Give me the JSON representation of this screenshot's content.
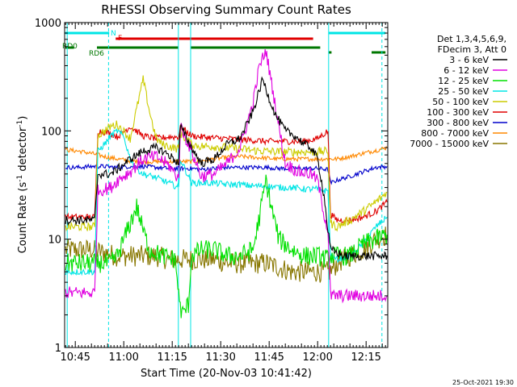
{
  "chart_data": {
    "type": "line",
    "title": "RHESSI Observing Summary Count Rates",
    "xlabel": "Start Time (20-Nov-03 10:41:42)",
    "ylabel": "Count Rate (s⁻¹ detector⁻¹)",
    "ylabel_parts": [
      "Count Rate (s",
      "-1",
      " detector",
      "-1",
      ")"
    ],
    "y_scale": "log",
    "ylim": [
      1,
      1000
    ],
    "xlim_minutes": [
      41.7,
      141.7
    ],
    "y_ticks": [
      {
        "value": 1,
        "label": "1"
      },
      {
        "value": 10,
        "label": "10"
      },
      {
        "value": 100,
        "label": "100"
      },
      {
        "value": 1000,
        "label": "1000"
      }
    ],
    "x_ticks": [
      {
        "minutes": 45,
        "label": "10:45"
      },
      {
        "minutes": 60,
        "label": "11:00"
      },
      {
        "minutes": 75,
        "label": "11:15"
      },
      {
        "minutes": 90,
        "label": "11:30"
      },
      {
        "minutes": 105,
        "label": "11:45"
      },
      {
        "minutes": 120,
        "label": "12:00"
      },
      {
        "minutes": 135,
        "label": "12:15"
      }
    ],
    "legend_header": [
      "Det 1,3,4,5,6,9,",
      "FDecim 3, Att 0"
    ],
    "legend_position": "right",
    "timestamp": "25-Oct-2021 19:30",
    "flags": [
      {
        "label": "N",
        "color": "#00e5e5",
        "ranges": [
          [
            41.9,
            55.5
          ],
          [
            123.4,
            141.0
          ]
        ]
      },
      {
        "label": "F",
        "color": "#e00000",
        "ranges": [
          [
            57.5,
            118.6
          ]
        ]
      },
      {
        "label": "RD0",
        "color": "#007700",
        "ranges": [
          [
            41.9,
            44.6
          ],
          [
            51.7,
            76.9
          ],
          [
            80.8,
            120.8
          ]
        ]
      },
      {
        "label": "RD6",
        "color": "#007700",
        "ranges": [
          [
            123.4,
            124.3
          ],
          [
            136.7,
            141.0
          ]
        ]
      }
    ],
    "vlines": [
      {
        "minutes": 42.5,
        "color": "#00e5e5",
        "style": "solid"
      },
      {
        "minutes": 55.3,
        "color": "#00e5e5",
        "style": "dashed"
      },
      {
        "minutes": 76.9,
        "color": "#00e5e5",
        "style": "solid"
      },
      {
        "minutes": 80.7,
        "color": "#00e5e5",
        "style": "solid"
      },
      {
        "minutes": 123.4,
        "color": "#00e5e5",
        "style": "solid"
      },
      {
        "minutes": 139.9,
        "color": "#00e5e5",
        "style": "dashed"
      }
    ],
    "series": [
      {
        "name": "3 - 6 keV",
        "color": "#000000",
        "x": [
          42,
          46,
          50,
          51,
          52,
          56,
          58,
          62,
          66,
          70,
          74,
          77,
          77.5,
          81,
          84,
          88,
          92,
          96,
          100,
          103,
          105,
          107,
          110,
          113,
          116,
          118,
          120,
          122,
          123.2,
          124,
          128,
          132,
          136,
          140,
          141.5
        ],
        "y": [
          15,
          15,
          15,
          15,
          40,
          40,
          44,
          55,
          65,
          70,
          60,
          50,
          110,
          70,
          50,
          55,
          75,
          85,
          150,
          300,
          200,
          140,
          100,
          90,
          75,
          70,
          55,
          25,
          12,
          8,
          7,
          7,
          7,
          7,
          7
        ]
      },
      {
        "name": "6 - 12 keV",
        "color": "#e000e0",
        "x": [
          42,
          50,
          51,
          52,
          56,
          58,
          62,
          66,
          70,
          74,
          77,
          77.5,
          81,
          84,
          88,
          92,
          96,
          100,
          102,
          104,
          106,
          108,
          110,
          114,
          118,
          120,
          122,
          123.2,
          124,
          128,
          132,
          136,
          140,
          141.5
        ],
        "y": [
          3.2,
          3.2,
          3.2,
          28,
          30,
          35,
          42,
          55,
          58,
          48,
          36,
          110,
          65,
          38,
          40,
          50,
          70,
          180,
          400,
          550,
          250,
          110,
          50,
          42,
          40,
          35,
          17,
          12,
          3,
          3,
          3,
          3,
          3,
          3
        ]
      },
      {
        "name": "12 - 25 keV",
        "color": "#00e000",
        "x": [
          42,
          50,
          51,
          52,
          56,
          58,
          62,
          64,
          66,
          68,
          72,
          76,
          77,
          78,
          80,
          81,
          84,
          88,
          92,
          96,
          100,
          102,
          104,
          106,
          108,
          112,
          116,
          120,
          123.2,
          124,
          126,
          130,
          134,
          138,
          141.5
        ],
        "y": [
          6,
          6,
          6,
          6,
          6,
          7,
          14,
          20,
          12,
          8,
          7,
          6.5,
          3,
          2,
          2.5,
          7,
          8,
          8,
          7,
          7,
          8,
          16,
          35,
          18,
          10,
          8,
          7,
          7,
          6.5,
          7,
          7,
          7,
          9,
          10,
          11
        ]
      },
      {
        "name": "25 - 50 keV",
        "color": "#00e5e5",
        "x": [
          42,
          50,
          51,
          52,
          54,
          56,
          58,
          60,
          62,
          64,
          66,
          70,
          74,
          77,
          77.5,
          81,
          84,
          88,
          92,
          96,
          100,
          104,
          108,
          112,
          116,
          120,
          122,
          123.2,
          124,
          126,
          130,
          134,
          138,
          141.5
        ],
        "y": [
          5,
          5,
          5,
          65,
          75,
          90,
          100,
          88,
          55,
          45,
          40,
          37,
          33,
          30,
          55,
          33,
          33,
          33,
          32,
          32,
          31,
          31,
          30,
          30,
          29,
          29,
          28,
          28,
          7,
          6.5,
          7,
          9,
          13,
          16
        ]
      },
      {
        "name": "50 - 100 keV",
        "color": "#cccc00",
        "x": [
          42,
          50,
          51,
          52,
          56,
          58,
          62,
          64,
          66,
          68,
          70,
          72,
          74,
          77,
          77.5,
          81,
          84,
          88,
          92,
          96,
          100,
          104,
          108,
          112,
          116,
          120,
          123.2,
          124,
          126,
          130,
          134,
          138,
          141.5
        ],
        "y": [
          13,
          13,
          13,
          90,
          110,
          115,
          85,
          160,
          300,
          150,
          85,
          75,
          72,
          68,
          95,
          75,
          72,
          72,
          70,
          68,
          66,
          65,
          64,
          64,
          64,
          64,
          65,
          14,
          13,
          15,
          18,
          22,
          27
        ]
      },
      {
        "name": "100 - 300 keV",
        "color": "#e00000",
        "x": [
          42,
          50,
          51,
          52,
          56,
          58,
          62,
          66,
          70,
          74,
          77,
          77.5,
          81,
          84,
          88,
          92,
          96,
          100,
          104,
          108,
          112,
          116,
          120,
          123.2,
          124,
          126,
          130,
          134,
          138,
          141.5
        ],
        "y": [
          16,
          16,
          16,
          100,
          95,
          88,
          110,
          90,
          85,
          88,
          88,
          110,
          90,
          88,
          86,
          85,
          83,
          82,
          80,
          80,
          80,
          80,
          85,
          100,
          17,
          15,
          15,
          16,
          18,
          22
        ]
      },
      {
        "name": "300 - 800 keV",
        "color": "#0000cc",
        "x": [
          42,
          46,
          50,
          54,
          58,
          62,
          66,
          70,
          74,
          77,
          77.5,
          81,
          84,
          88,
          92,
          96,
          100,
          104,
          108,
          112,
          116,
          120,
          123.2,
          124,
          126,
          130,
          134,
          138,
          141.5
        ],
        "y": [
          46,
          46,
          47,
          47,
          46,
          47,
          47,
          46,
          45,
          45,
          45,
          45,
          44,
          45,
          46,
          46,
          46,
          46,
          45,
          45,
          45,
          45,
          44,
          33,
          35,
          38,
          42,
          46,
          47
        ]
      },
      {
        "name": "800 - 7000 keV",
        "color": "#ff8800",
        "x": [
          42,
          46,
          50,
          54,
          58,
          62,
          66,
          70,
          74,
          77,
          81,
          84,
          88,
          92,
          96,
          100,
          104,
          108,
          112,
          116,
          120,
          123.2,
          124,
          126,
          130,
          134,
          138,
          141.5
        ],
        "y": [
          67,
          65,
          62,
          58,
          55,
          53,
          52,
          52,
          52,
          52,
          52,
          53,
          55,
          57,
          58,
          57,
          56,
          55,
          55,
          55,
          55,
          55,
          55,
          55,
          58,
          62,
          66,
          70
        ]
      },
      {
        "name": "7000 - 15000 keV",
        "color": "#887700",
        "x": [
          42,
          46,
          50,
          54,
          58,
          62,
          66,
          70,
          74,
          77,
          81,
          84,
          88,
          92,
          96,
          100,
          104,
          108,
          112,
          116,
          120,
          123.2,
          124,
          126,
          130,
          134,
          138,
          141.5
        ],
        "y": [
          8,
          8,
          8,
          7.5,
          7,
          7,
          7,
          7,
          6.5,
          6.5,
          6.5,
          6.5,
          6.5,
          6,
          6,
          6,
          6,
          5.5,
          5,
          5,
          5,
          5,
          5,
          6,
          7,
          8,
          10,
          11
        ]
      }
    ]
  }
}
